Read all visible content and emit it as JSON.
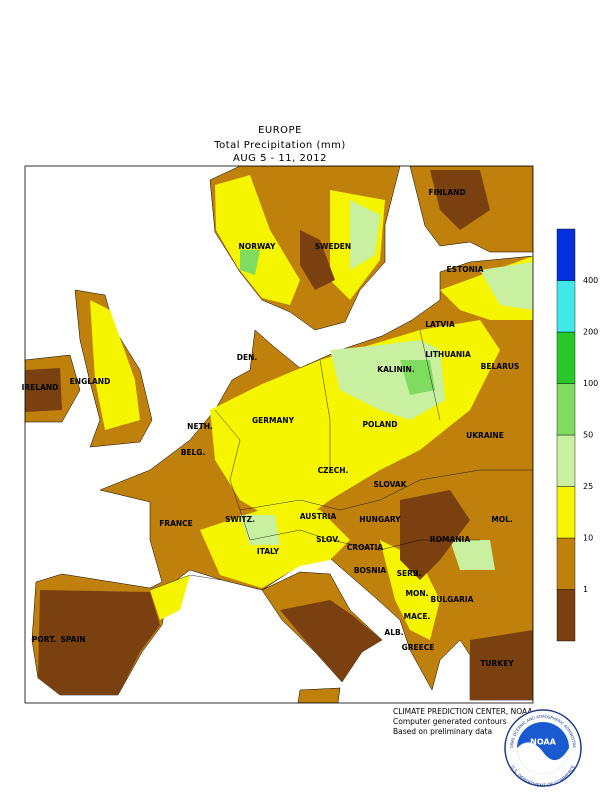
{
  "header": {
    "region": "EUROPE",
    "title": "Total Precipitation (mm)",
    "dates": "AUG 5 - 11, 2012"
  },
  "legend": {
    "colors": [
      "#7a4010",
      "#c0800c",
      "#f5f500",
      "#c8f0a0",
      "#80dc60",
      "#28c828",
      "#40e8e8",
      "#0030e0"
    ],
    "ticks": [
      1,
      10,
      25,
      50,
      100,
      200,
      400
    ]
  },
  "labels": [
    "NORWAY",
    "SWEDEN",
    "FINLAND",
    "ESTONIA",
    "LATVIA",
    "LITHUANIA",
    "KALININ.",
    "DEN.",
    "IRELAND",
    "ENGLAND",
    "NETH.",
    "BELG.",
    "GERMANY",
    "POLAND",
    "BELARUS",
    "UKRAINE",
    "CZECH.",
    "SLOVAK",
    "FRANCE",
    "SWITZ.",
    "AUSTRIA",
    "HUNGARY",
    "MOL.",
    "ROMANIA",
    "SLOV.",
    "CROATIA",
    "ITALY",
    "BOSNIA",
    "SERB.",
    "MON.",
    "BULGARIA",
    "MACE.",
    "ALB.",
    "GREECE",
    "PORT.",
    "SPAIN",
    "TURKEY"
  ],
  "credits": [
    "CLIMATE PREDICTION CENTER, NOAA",
    "Computer generated contours",
    "Based on preliminary data"
  ],
  "logo": {
    "name": "NOAA",
    "agency": "NATIONAL OCEANIC AND ATMOSPHERIC ADMINISTRATION",
    "department": "U.S. DEPARTMENT OF COMMERCE"
  }
}
